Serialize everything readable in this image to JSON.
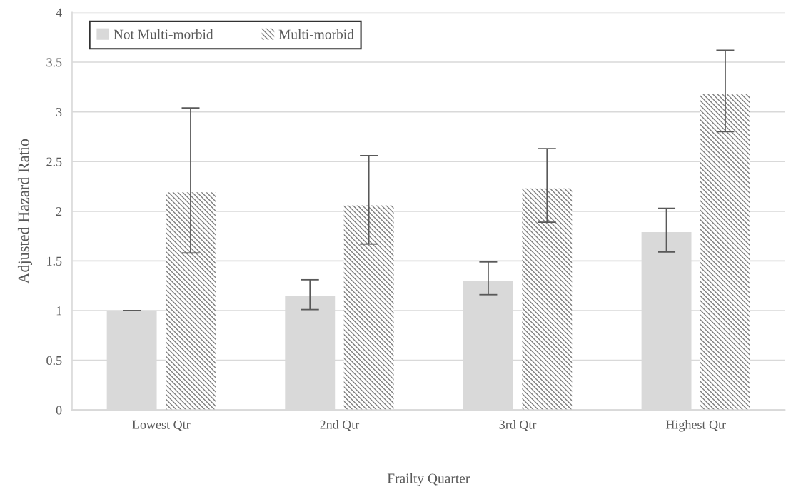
{
  "chart_data": {
    "type": "bar",
    "xlabel": "Frailty Quarter",
    "ylabel": "Adjusted Hazard Ratio",
    "categories": [
      "Lowest Qtr",
      "2nd Qtr",
      "3rd Qtr",
      "Highest Qtr"
    ],
    "series": [
      {
        "name": "Not Multi-morbid",
        "color": "#d9d9d9",
        "values": [
          1.0,
          1.15,
          1.3,
          1.79
        ],
        "errors": [
          [
            1.0,
            1.0
          ],
          [
            1.01,
            1.31
          ],
          [
            1.16,
            1.49
          ],
          [
            1.59,
            2.03
          ]
        ]
      },
      {
        "name": "Multi-morbid",
        "color": "#7f7f7f",
        "values": [
          2.19,
          2.06,
          2.23,
          3.18
        ],
        "errors": [
          [
            1.58,
            3.04
          ],
          [
            1.67,
            2.56
          ],
          [
            1.89,
            2.63
          ],
          [
            2.8,
            3.62
          ]
        ]
      }
    ],
    "ylim": [
      0,
      4
    ],
    "yticks": [
      0,
      0.5,
      1,
      1.5,
      2,
      2.5,
      3,
      3.5,
      4
    ],
    "grid": "y",
    "legend": "top left"
  }
}
